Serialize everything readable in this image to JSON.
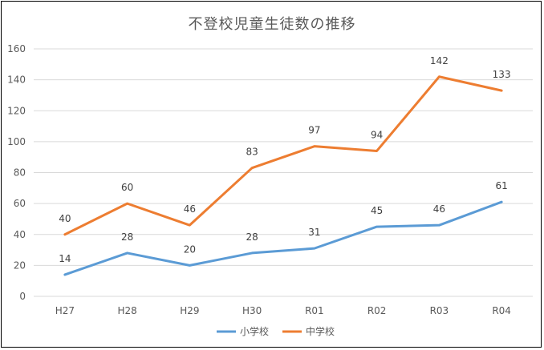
{
  "chart_data": {
    "type": "line",
    "title": "不登校児童生徒数の推移",
    "categories": [
      "H27",
      "H28",
      "H29",
      "H30",
      "R01",
      "R02",
      "R03",
      "R04"
    ],
    "series": [
      {
        "name": "小学校",
        "values": [
          14,
          28,
          20,
          28,
          31,
          45,
          46,
          61
        ],
        "color": "#5B9BD5"
      },
      {
        "name": "中学校",
        "values": [
          40,
          60,
          46,
          83,
          97,
          94,
          142,
          133
        ],
        "color": "#ED7D31"
      }
    ],
    "xlabel": "",
    "ylabel": "",
    "ylim": [
      0,
      160
    ],
    "yticks": [
      0,
      20,
      40,
      60,
      80,
      100,
      120,
      140,
      160
    ],
    "grid": true,
    "legend": "bottom",
    "gridColor": "#D9D9D9"
  }
}
